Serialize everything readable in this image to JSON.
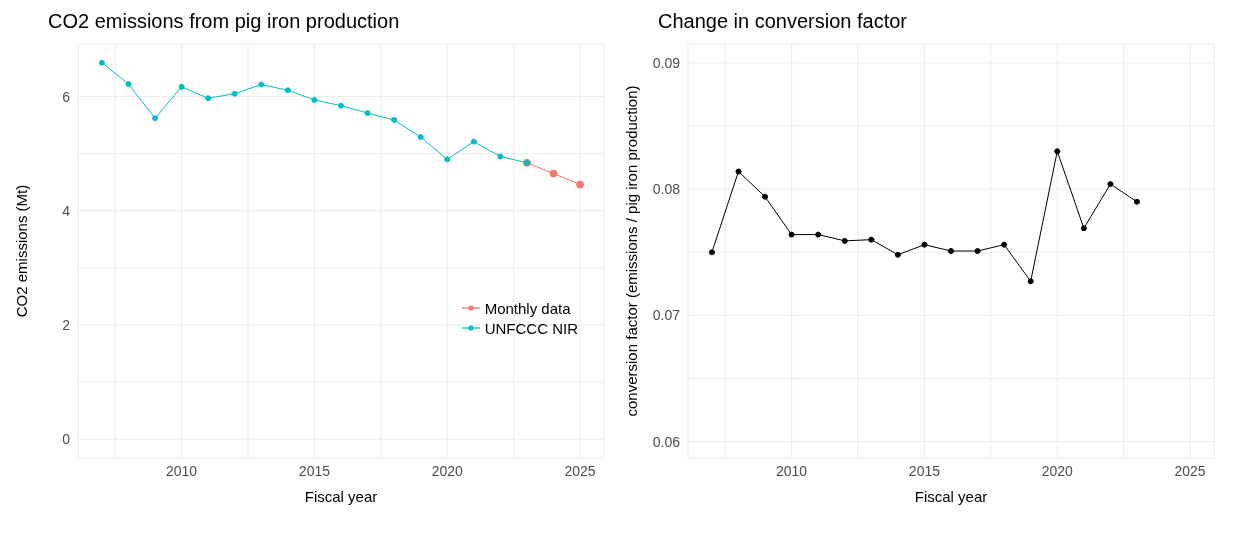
{
  "chart_data": [
    {
      "type": "line",
      "title": "CO2 emissions from pig iron production",
      "xlabel": "Fiscal year",
      "ylabel": "CO2 emissions (Mt)",
      "xlim": [
        2006.1,
        2025.9
      ],
      "ylim": [
        -0.33,
        6.92
      ],
      "xticks": [
        {
          "value": 2007.5,
          "label": null
        },
        2010,
        {
          "value": 2012.5,
          "label": null
        },
        2015,
        {
          "value": 2017.5,
          "label": null
        },
        2020,
        {
          "value": 2022.5,
          "label": null
        },
        2025
      ],
      "yticks": [
        0,
        {
          "value": 1,
          "label": null
        },
        2,
        {
          "value": 3,
          "label": null
        },
        4,
        {
          "value": 5,
          "label": null
        },
        6
      ],
      "grid": true,
      "legend": "right",
      "marker": "circle",
      "line_style": "solid",
      "series": [
        {
          "name": "Monthly data",
          "color": "#f8766d",
          "x": [
            2023,
            2024,
            2025
          ],
          "values": [
            4.84,
            4.65,
            4.46
          ]
        },
        {
          "name": "UNFCCC NIR",
          "color": "#00bfc4",
          "x": [
            2007,
            2008,
            2009,
            2010,
            2011,
            2012,
            2013,
            2014,
            2015,
            2016,
            2017,
            2018,
            2019,
            2020,
            2021,
            2022,
            2023
          ],
          "values": [
            6.59,
            6.22,
            5.62,
            6.17,
            5.97,
            6.05,
            6.21,
            6.11,
            5.94,
            5.84,
            5.71,
            5.59,
            5.29,
            4.9,
            5.21,
            4.95,
            4.84
          ]
        }
      ]
    },
    {
      "type": "line",
      "title": "Change in conversion factor",
      "xlabel": "Fiscal year",
      "ylabel": "conversion factor (emissions / pig iron production)",
      "xlim": [
        2006.1,
        2025.9
      ],
      "ylim": [
        0.0587,
        0.0915
      ],
      "xticks": [
        {
          "value": 2007.5,
          "label": null
        },
        2010,
        {
          "value": 2012.5,
          "label": null
        },
        2015,
        {
          "value": 2017.5,
          "label": null
        },
        2020,
        {
          "value": 2022.5,
          "label": null
        },
        2025
      ],
      "yticks": [
        0.06,
        {
          "value": 0.065,
          "label": null
        },
        0.07,
        {
          "value": 0.075,
          "label": null
        },
        0.08,
        {
          "value": 0.085,
          "label": null
        },
        0.09
      ],
      "grid": true,
      "legend": false,
      "marker": "circle",
      "line_style": "solid",
      "series": [
        {
          "color": "#000000",
          "x": [
            2007,
            2008,
            2009,
            2010,
            2011,
            2012,
            2013,
            2014,
            2015,
            2016,
            2017,
            2018,
            2019,
            2020,
            2021,
            2022,
            2023
          ],
          "values": [
            0.075,
            0.0814,
            0.0794,
            0.0764,
            0.0764,
            0.0759,
            0.076,
            0.0748,
            0.0756,
            0.0751,
            0.0751,
            0.0756,
            0.0727,
            0.083,
            0.0769,
            0.0804,
            0.079
          ]
        }
      ]
    }
  ]
}
